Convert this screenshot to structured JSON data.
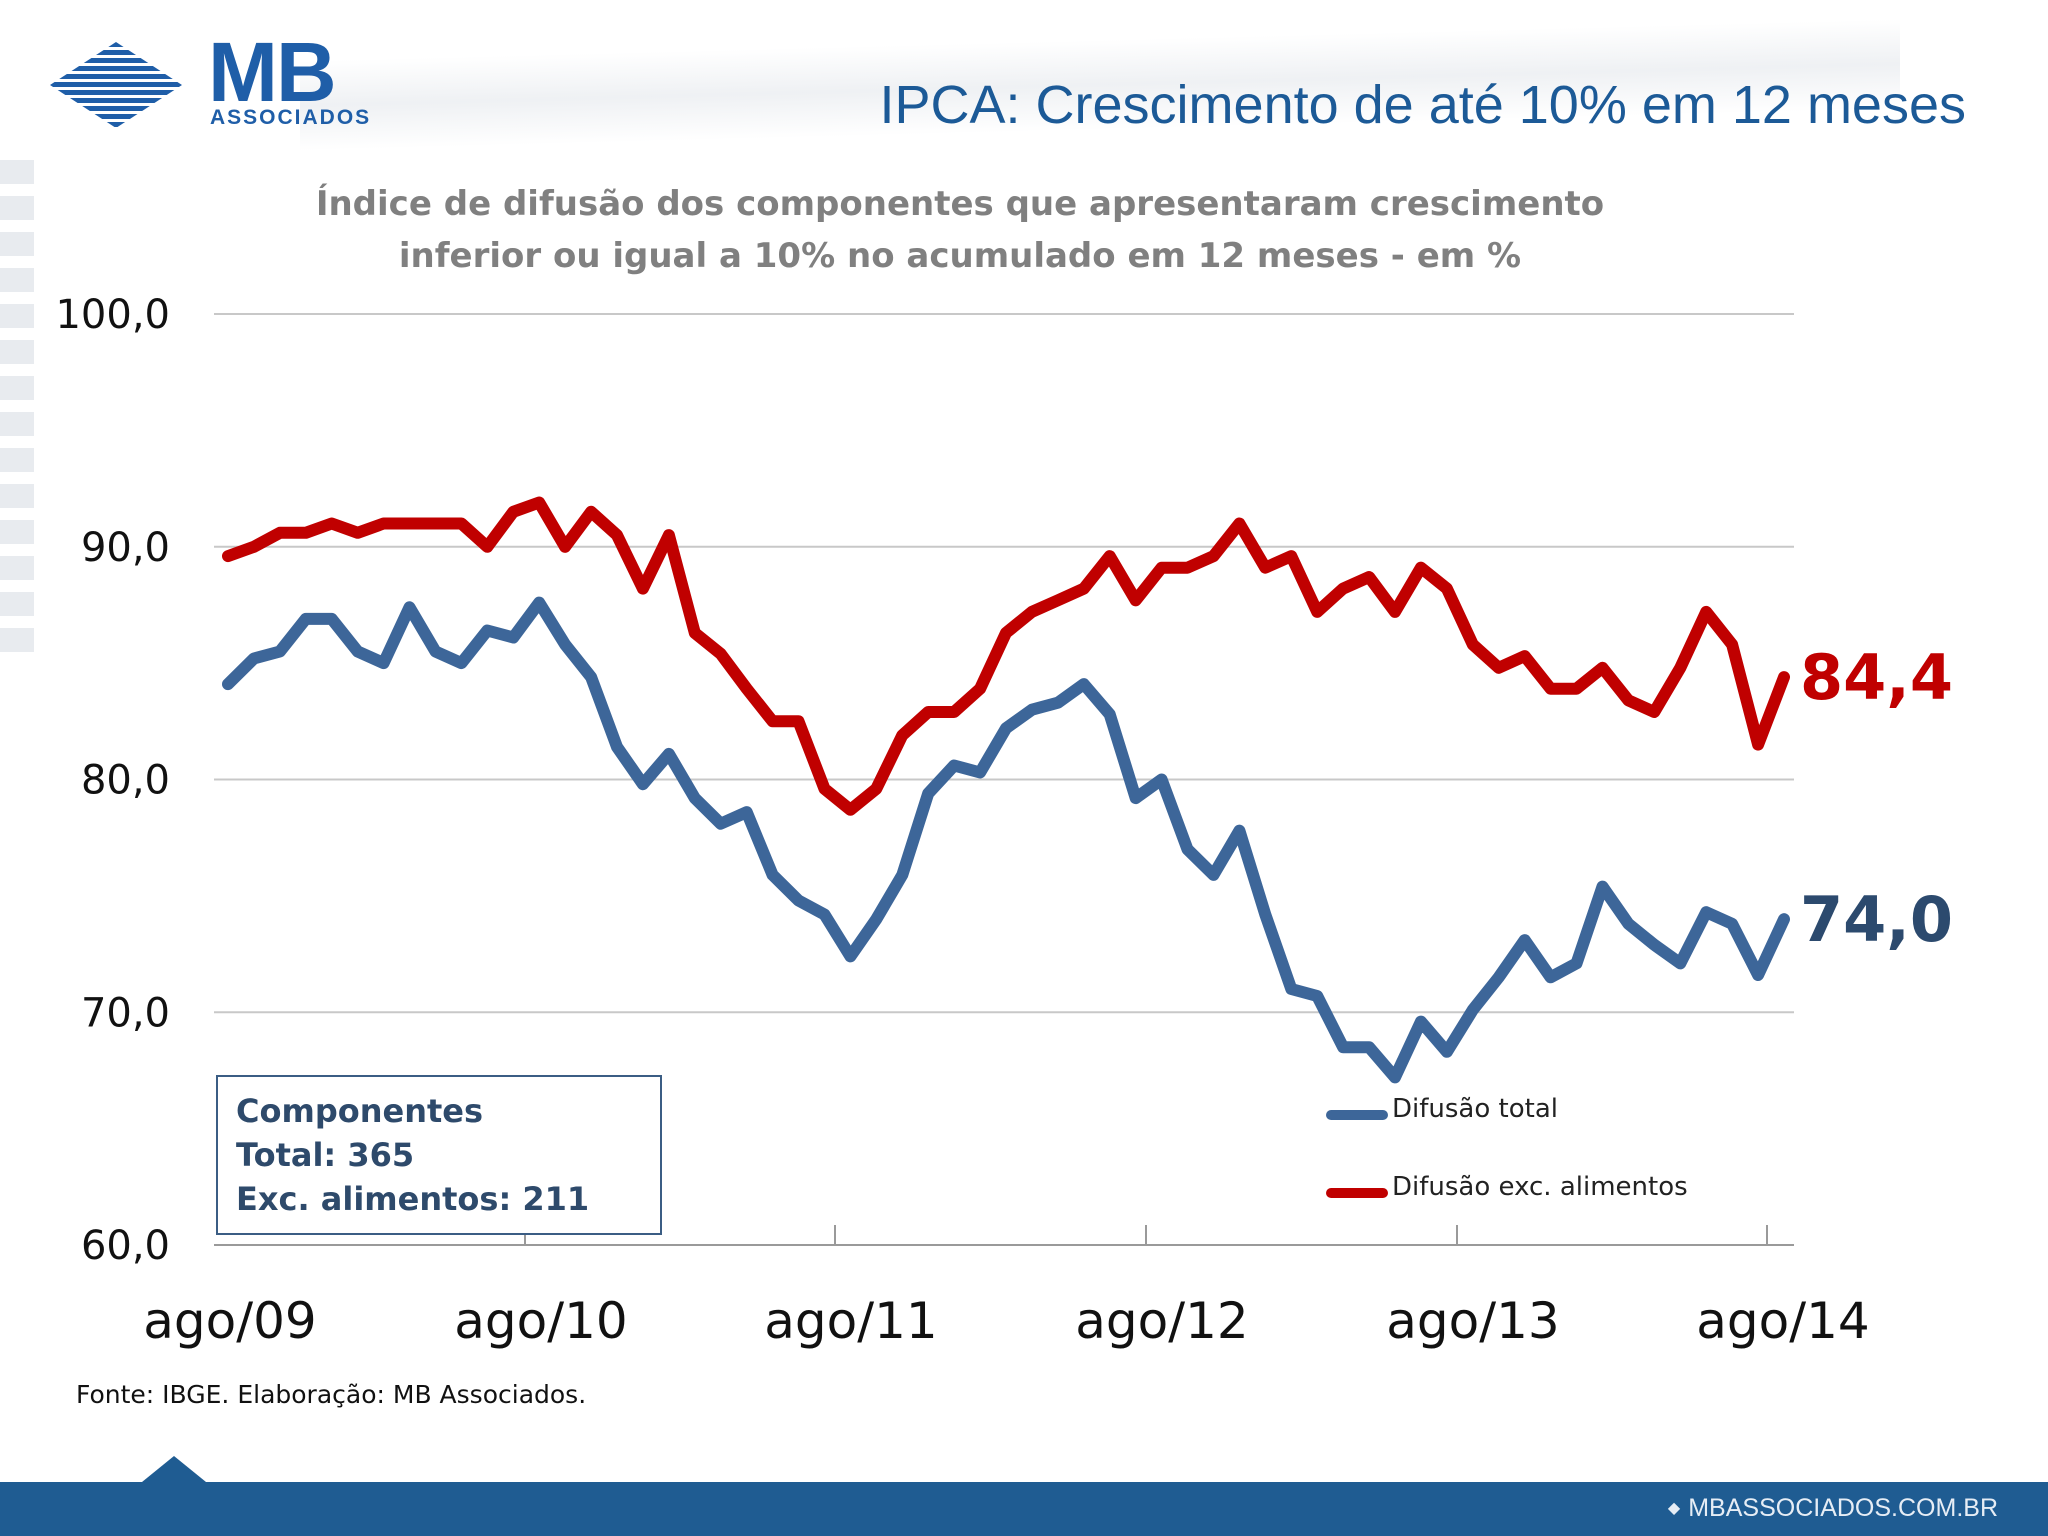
{
  "header": {
    "logo_main": "MB",
    "logo_sub": "ASSOCIADOS",
    "title": "IPCA: Crescimento de até 10% em 12 meses"
  },
  "colors": {
    "brand_blue": "#1f5ea8",
    "title_blue": "#1c5a97",
    "series_total": "#3d6699",
    "series_exc": "#c00000",
    "footer_bar": "#1f5c92"
  },
  "chart_data": {
    "type": "line",
    "title_line1": "Índice de difusão dos componentes que apresentaram crescimento",
    "title_line2": "inferior ou igual a 10% no acumulado em 12 meses - em %",
    "xlabel": "",
    "ylabel": "",
    "ylim": [
      60,
      100
    ],
    "yticks": [
      "100,0",
      "90,0",
      "80,0",
      "70,0",
      "60,0"
    ],
    "ytick_values": [
      100,
      90,
      80,
      70,
      60
    ],
    "xtick_labels": [
      "ago/09",
      "ago/10",
      "ago/11",
      "ago/12",
      "ago/13",
      "ago/14"
    ],
    "xtick_indices": [
      0,
      12,
      24,
      36,
      48,
      60
    ],
    "grid": "horizontal",
    "legend_position": "bottom-right",
    "series": [
      {
        "name": "Difusão total",
        "color": "#3d6699",
        "end_label": "74,0",
        "values": [
          84.1,
          85.2,
          85.5,
          86.9,
          86.9,
          85.5,
          85.0,
          87.4,
          85.5,
          85.0,
          86.4,
          86.1,
          87.6,
          85.8,
          84.4,
          81.4,
          79.8,
          81.1,
          79.2,
          78.1,
          78.6,
          75.9,
          74.8,
          74.2,
          72.4,
          74.0,
          75.9,
          79.4,
          80.6,
          80.3,
          82.2,
          83.0,
          83.3,
          84.1,
          82.8,
          79.2,
          80.0,
          77.0,
          75.9,
          77.8,
          74.2,
          71.0,
          70.7,
          68.5,
          68.5,
          67.2,
          69.6,
          68.3,
          70.1,
          71.5,
          73.1,
          71.5,
          72.1,
          75.4,
          73.8,
          72.9,
          72.1,
          74.3,
          73.8,
          71.6,
          74.0
        ]
      },
      {
        "name": "Difusão exc. alimentos",
        "color": "#c00000",
        "end_label": "84,4",
        "values": [
          89.6,
          90.0,
          90.6,
          90.6,
          91.0,
          90.6,
          91.0,
          91.0,
          91.0,
          91.0,
          90.0,
          91.5,
          91.9,
          90.0,
          91.5,
          90.5,
          88.2,
          90.5,
          86.3,
          85.4,
          83.9,
          82.5,
          82.5,
          79.6,
          78.7,
          79.6,
          81.9,
          82.9,
          82.9,
          83.9,
          86.3,
          87.2,
          87.7,
          88.2,
          89.6,
          87.7,
          89.1,
          89.1,
          89.6,
          91.0,
          89.1,
          89.6,
          87.2,
          88.2,
          88.7,
          87.2,
          89.1,
          88.2,
          85.8,
          84.8,
          85.3,
          83.9,
          83.9,
          84.8,
          83.4,
          82.9,
          84.8,
          87.2,
          85.8,
          81.5,
          84.4
        ]
      }
    ]
  },
  "components_box": {
    "heading": "Componentes",
    "total": "Total: 365",
    "exc": "Exc. alimentos: 211"
  },
  "source_note": "Fonte: IBGE. Elaboração: MB Associados.",
  "footer": {
    "site": "MBASSOCIADOS.COM.BR"
  }
}
